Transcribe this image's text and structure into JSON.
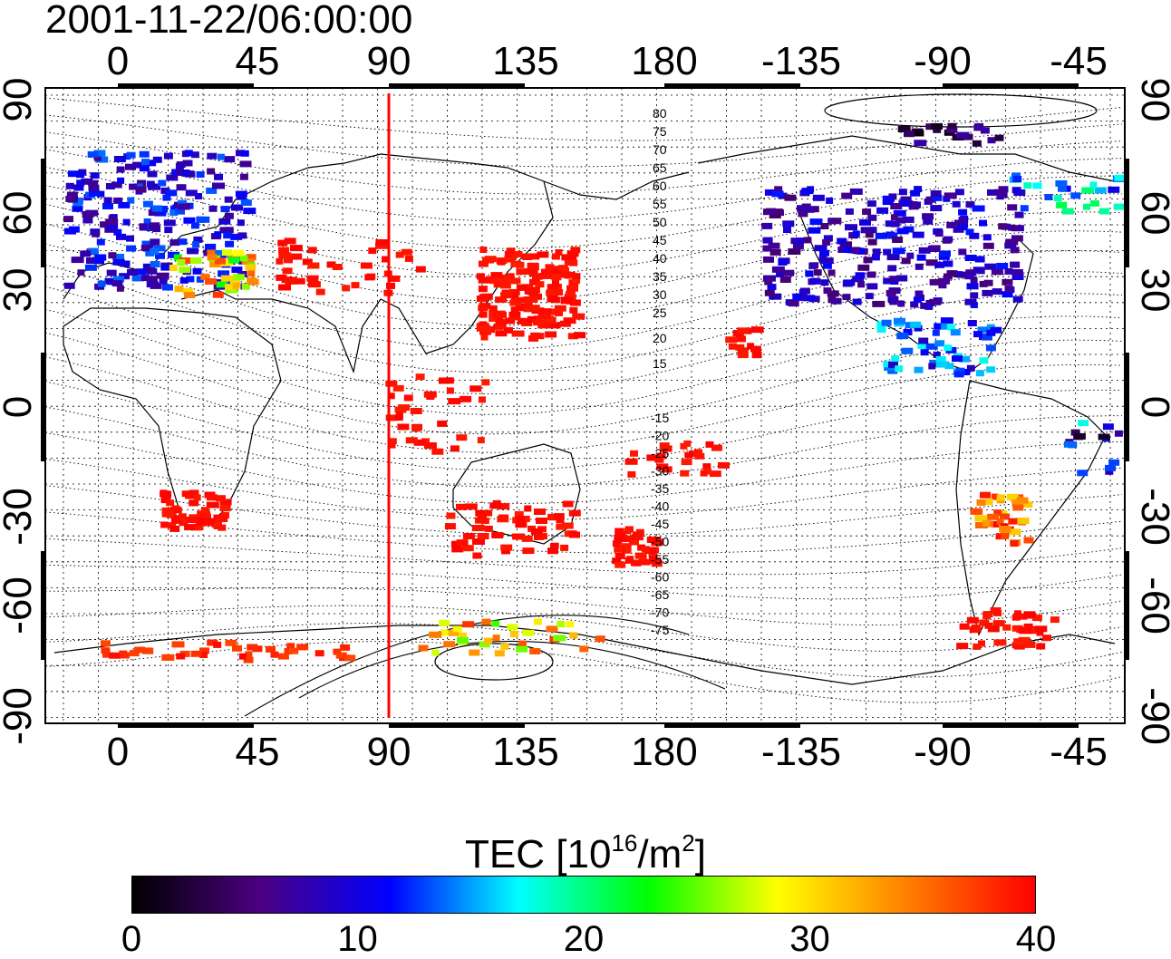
{
  "title": "2001-11-22/06:00:00",
  "map": {
    "x_ticks": [
      "0",
      "45",
      "90",
      "135",
      "180",
      "-135",
      "-90",
      "-45"
    ],
    "y_ticks": [
      "90",
      "60",
      "30",
      "0",
      "-30",
      "-60",
      "-90"
    ],
    "contour_labels_north": [
      "80",
      "75",
      "70",
      "65",
      "60",
      "55",
      "50",
      "45",
      "40",
      "35",
      "30",
      "25",
      "20",
      "15"
    ],
    "contour_labels_south": [
      "-15",
      "-20",
      "-25",
      "-30",
      "-35",
      "-40",
      "-45",
      "-50",
      "-55",
      "-60",
      "-65",
      "-70",
      "-75"
    ],
    "marker_line_color": "#ff0000"
  },
  "colorbar": {
    "label_main": "TEC  [10",
    "label_exp1": "16",
    "label_mid": "/m",
    "label_exp2": "2",
    "label_end": "]",
    "ticks": [
      "0",
      "10",
      "20",
      "30",
      "40"
    ],
    "range": [
      0,
      40
    ],
    "colors": [
      "#000000",
      "#4b0082",
      "#0000ff",
      "#00ffff",
      "#00ff00",
      "#ffff00",
      "#ff8000",
      "#ff0000"
    ]
  }
}
